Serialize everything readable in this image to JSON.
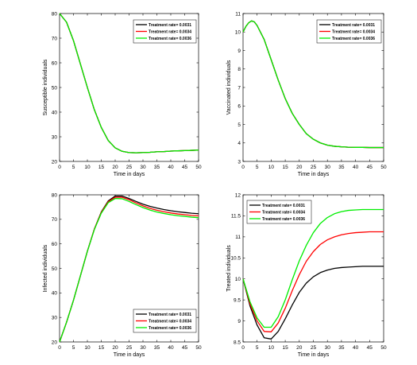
{
  "chart_data": [
    {
      "type": "line",
      "xlabel": "Time in days",
      "ylabel": "Susceptible individuals",
      "xlim": [
        0,
        50
      ],
      "ylim": [
        20,
        80
      ],
      "xticks": [
        "0",
        "5",
        "10",
        "15",
        "20",
        "25",
        "30",
        "35",
        "40",
        "45",
        "50"
      ],
      "yticks": [
        "20",
        "30",
        "40",
        "50",
        "60",
        "70",
        "80"
      ],
      "legend_position": "top-right",
      "x": [
        0,
        2.5,
        5,
        7.5,
        10,
        12.5,
        15,
        17.5,
        20,
        22.5,
        25,
        27.5,
        30,
        32.5,
        35,
        37.5,
        40,
        42.5,
        45,
        47.5,
        50
      ],
      "series": [
        {
          "name": "Treatment rate= 0.0031",
          "color": "#000000",
          "values": [
            80,
            76.5,
            69.0,
            59.5,
            50.0,
            41.0,
            33.8,
            28.5,
            25.5,
            24.1,
            23.6,
            23.5,
            23.6,
            23.7,
            23.9,
            24.0,
            24.2,
            24.3,
            24.4,
            24.5,
            24.6
          ]
        },
        {
          "name": "Treatment rate= 0.0034",
          "color": "#ff0000",
          "values": [
            80,
            76.5,
            69.0,
            59.5,
            50.0,
            41.0,
            33.8,
            28.5,
            25.5,
            24.1,
            23.6,
            23.5,
            23.6,
            23.7,
            23.9,
            24.0,
            24.2,
            24.3,
            24.4,
            24.5,
            24.6
          ]
        },
        {
          "name": "Treatment rate= 0.0036",
          "color": "#00ee00",
          "values": [
            80,
            76.5,
            69.0,
            59.5,
            50.0,
            41.0,
            33.8,
            28.5,
            25.5,
            24.1,
            23.6,
            23.5,
            23.6,
            23.7,
            23.9,
            24.0,
            24.2,
            24.3,
            24.4,
            24.5,
            24.6
          ]
        }
      ]
    },
    {
      "type": "line",
      "xlabel": "Time in days",
      "ylabel": "Vaccinated individuals",
      "xlim": [
        0,
        50
      ],
      "ylim": [
        3,
        11
      ],
      "xticks": [
        "0",
        "5",
        "10",
        "15",
        "20",
        "25",
        "30",
        "35",
        "40",
        "45",
        "50"
      ],
      "yticks": [
        "3",
        "4",
        "5",
        "6",
        "7",
        "8",
        "9",
        "10",
        "11"
      ],
      "legend_position": "top-right",
      "x": [
        0,
        1,
        2,
        3,
        4,
        5,
        7.5,
        10,
        12.5,
        15,
        17.5,
        20,
        22.5,
        25,
        27.5,
        30,
        32.5,
        35,
        37.5,
        40,
        42.5,
        45,
        47.5,
        50
      ],
      "series": [
        {
          "name": "Treatment rate= 0.0031",
          "color": "#000000",
          "values": [
            10.0,
            10.3,
            10.5,
            10.6,
            10.55,
            10.35,
            9.6,
            8.5,
            7.4,
            6.4,
            5.6,
            5.0,
            4.5,
            4.2,
            4.0,
            3.88,
            3.82,
            3.79,
            3.77,
            3.76,
            3.76,
            3.75,
            3.75,
            3.75
          ]
        },
        {
          "name": "Treatment rate= 0.0034",
          "color": "#ff0000",
          "values": [
            10.0,
            10.3,
            10.5,
            10.6,
            10.55,
            10.35,
            9.6,
            8.5,
            7.4,
            6.4,
            5.6,
            5.0,
            4.5,
            4.2,
            4.0,
            3.88,
            3.82,
            3.79,
            3.77,
            3.76,
            3.76,
            3.75,
            3.75,
            3.75
          ]
        },
        {
          "name": "Treatment rate= 0.0036",
          "color": "#00ee00",
          "values": [
            10.0,
            10.3,
            10.5,
            10.6,
            10.55,
            10.35,
            9.6,
            8.5,
            7.4,
            6.4,
            5.6,
            5.0,
            4.5,
            4.2,
            4.0,
            3.88,
            3.82,
            3.79,
            3.77,
            3.76,
            3.76,
            3.75,
            3.75,
            3.75
          ]
        }
      ]
    },
    {
      "type": "line",
      "xlabel": "Time in days",
      "ylabel": "Infected individuals",
      "xlim": [
        0,
        50
      ],
      "ylim": [
        20,
        80
      ],
      "xticks": [
        "0",
        "5",
        "10",
        "15",
        "20",
        "25",
        "30",
        "35",
        "40",
        "45",
        "50"
      ],
      "yticks": [
        "20",
        "30",
        "40",
        "50",
        "60",
        "70",
        "80"
      ],
      "legend_position": "bottom-right",
      "x": [
        0,
        2.5,
        5,
        7.5,
        10,
        12.5,
        15,
        17.5,
        20,
        22.5,
        25,
        27.5,
        30,
        32.5,
        35,
        37.5,
        40,
        42.5,
        45,
        47.5,
        50
      ],
      "series": [
        {
          "name": "Treatment rate= 0.0031",
          "color": "#000000",
          "values": [
            20,
            28,
            37,
            47,
            57,
            66,
            73,
            77.5,
            79.5,
            79.5,
            78.5,
            77.3,
            76.2,
            75.3,
            74.6,
            74.0,
            73.5,
            73.1,
            72.8,
            72.5,
            72.3
          ]
        },
        {
          "name": "Treatment rate= 0.0034",
          "color": "#ff0000",
          "values": [
            20,
            28,
            37,
            47,
            57,
            66,
            72.8,
            77.2,
            79.0,
            79.0,
            78.0,
            76.7,
            75.5,
            74.5,
            73.7,
            73.1,
            72.6,
            72.2,
            71.9,
            71.6,
            71.4
          ]
        },
        {
          "name": "Treatment rate= 0.0036",
          "color": "#00ee00",
          "values": [
            20,
            28,
            37,
            47,
            57,
            65.8,
            72.5,
            76.8,
            78.5,
            78.4,
            77.3,
            76.0,
            74.8,
            73.8,
            73.0,
            72.4,
            71.9,
            71.5,
            71.2,
            70.9,
            70.7
          ]
        }
      ]
    },
    {
      "type": "line",
      "xlabel": "Time in days",
      "ylabel": "Treated individuals",
      "xlim": [
        0,
        50
      ],
      "ylim": [
        8.5,
        12
      ],
      "xticks": [
        "0",
        "5",
        "10",
        "15",
        "20",
        "25",
        "30",
        "35",
        "40",
        "45",
        "50"
      ],
      "yticks": [
        "8.5",
        "9",
        "9.5",
        "10",
        "10.5",
        "11",
        "11.5",
        "12"
      ],
      "legend_position": "top-left",
      "x": [
        0,
        2.5,
        5,
        7.5,
        10,
        12.5,
        15,
        17.5,
        20,
        22.5,
        25,
        27.5,
        30,
        32.5,
        35,
        37.5,
        40,
        42.5,
        45,
        47.5,
        50
      ],
      "series": [
        {
          "name": "Treatment rate= 0.0031",
          "color": "#000000",
          "values": [
            10.0,
            9.35,
            8.9,
            8.6,
            8.57,
            8.75,
            9.05,
            9.38,
            9.68,
            9.9,
            10.05,
            10.15,
            10.21,
            10.25,
            10.27,
            10.28,
            10.29,
            10.3,
            10.3,
            10.3,
            10.3
          ]
        },
        {
          "name": "Treatment rate= 0.0034",
          "color": "#ff0000",
          "values": [
            10.0,
            9.4,
            9.0,
            8.75,
            8.74,
            8.95,
            9.3,
            9.72,
            10.1,
            10.42,
            10.65,
            10.82,
            10.93,
            11.0,
            11.05,
            11.08,
            11.1,
            11.11,
            11.12,
            11.12,
            11.12
          ]
        },
        {
          "name": "Treatment rate= 0.0036",
          "color": "#00ee00",
          "values": [
            10.0,
            9.45,
            9.07,
            8.85,
            8.85,
            9.1,
            9.5,
            9.98,
            10.43,
            10.8,
            11.1,
            11.32,
            11.46,
            11.55,
            11.6,
            11.63,
            11.64,
            11.65,
            11.65,
            11.65,
            11.65
          ]
        }
      ]
    }
  ]
}
